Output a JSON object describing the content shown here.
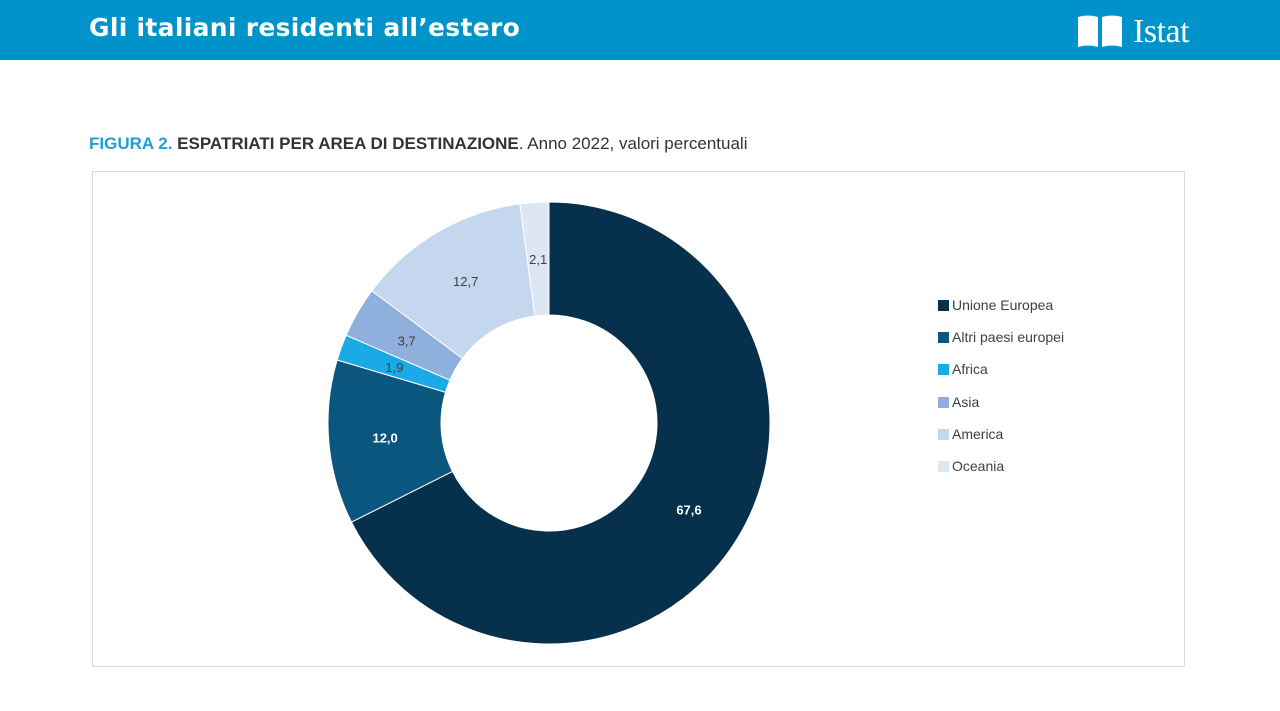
{
  "header": {
    "title": "Gli italiani residenti all’estero",
    "logo_text": "Istat",
    "bg_color": "#0093c9"
  },
  "figure": {
    "label": "FIGURA 2.",
    "title": "ESPATRIATI PER AREA DI DESTINAZIONE",
    "subtitle": ". Anno 2022, valori percentuali"
  },
  "chart_data": {
    "type": "pie",
    "variant": "donut",
    "legend_placement": "right",
    "categories": [
      "Unione Europea",
      "Altri paesi europei",
      "Africa",
      "Asia",
      "America",
      "Oceania"
    ],
    "values": [
      67.6,
      12.0,
      1.9,
      3.7,
      12.7,
      2.1
    ],
    "value_labels": [
      "67,6",
      "12,0",
      "1,9",
      "3,7",
      "12,7",
      "2,1"
    ],
    "colors": [
      "#06304b",
      "#0a567f",
      "#1aaae5",
      "#8fb0dc",
      "#c5d7ee",
      "#dde6f3"
    ],
    "label_colors": [
      "#ffffff",
      "#ffffff",
      "#404040",
      "#404040",
      "#404040",
      "#404040"
    ]
  }
}
